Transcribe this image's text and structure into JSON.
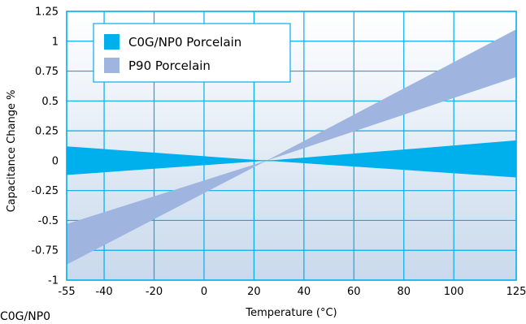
{
  "chart_data": {
    "type": "area",
    "xlabel": "Temperature (°C)",
    "ylabel": "Capacitance Change %",
    "xlim": [
      -55,
      125
    ],
    "ylim": [
      -1,
      1.25
    ],
    "x_ticks": [
      -55,
      -40,
      -20,
      0,
      20,
      40,
      60,
      80,
      100,
      125
    ],
    "y_ticks": [
      1.25,
      1,
      0.75,
      0.5,
      0.25,
      0,
      -0.25,
      -0.5,
      -0.75,
      -1
    ],
    "grid": true,
    "legend_position": "top-left",
    "series": [
      {
        "name": "C0G/NP0 Porcelain",
        "color": "#00b0ec",
        "x": [
          -55,
          25,
          125
        ],
        "upper": [
          0.12,
          0,
          0.17
        ],
        "lower": [
          -0.12,
          0,
          -0.14
        ]
      },
      {
        "name": "P90 Porcelain",
        "color": "#9fb5e0",
        "x": [
          -55,
          25,
          125
        ],
        "upper": [
          -0.53,
          0,
          1.1
        ],
        "lower": [
          -0.87,
          0,
          0.7
        ]
      }
    ]
  },
  "caption_below": "C0G/NP0"
}
